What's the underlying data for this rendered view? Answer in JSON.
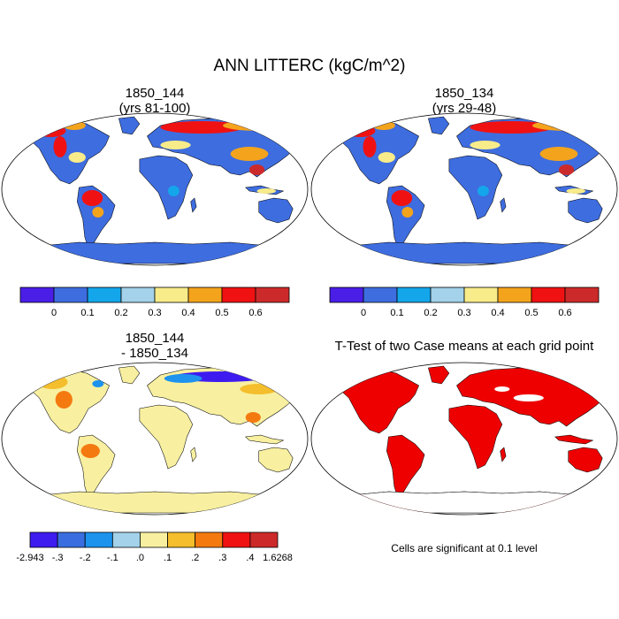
{
  "main_title": "ANN LITTERC (kgC/m^2)",
  "panels": {
    "top_left": {
      "line1": "1850_144",
      "line2": "(yrs 81-100)"
    },
    "top_right": {
      "line1": "1850_134",
      "line2": "(yrs 29-48)"
    },
    "bottom_left": {
      "line1": "1850_144",
      "line2": "- 1850_134"
    },
    "bottom_right": {
      "line1": "T-Test of two Case means at each grid point"
    }
  },
  "colorbar_case": {
    "colors": [
      "#4b1ee8",
      "#3e6de0",
      "#14a6ea",
      "#a3d2ea",
      "#f8ec8a",
      "#f4a41c",
      "#f01212",
      "#cc2a2a"
    ],
    "labels": [
      "0",
      "0.1",
      "0.2",
      "0.3",
      "0.4",
      "0.5",
      "0.6"
    ]
  },
  "colorbar_diff": {
    "colors": [
      "#3e1cf0",
      "#3a6ee0",
      "#1d93ee",
      "#a3d2ea",
      "#f8f0a0",
      "#f4be2c",
      "#f47a10",
      "#f01212",
      "#cc2a2a"
    ],
    "labels": [
      "-2.943",
      "-.3",
      "-.2",
      "-.1",
      ".0",
      ".1",
      ".2",
      ".3",
      ".4",
      "1.6268"
    ]
  },
  "significance_note": "Cells are significant at 0.1 level",
  "colors": {
    "land_case": "#3e6de0",
    "land_diff": "#f8f0a0",
    "significant": "#ee0000",
    "ocean": "#ffffff"
  }
}
